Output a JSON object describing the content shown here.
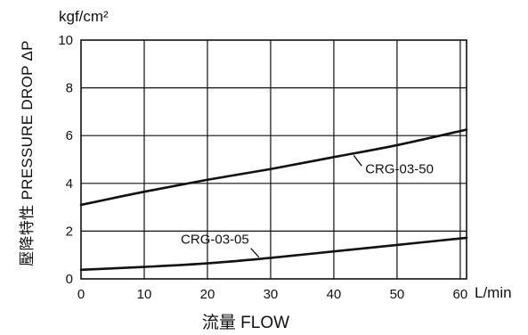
{
  "chart_data": {
    "type": "line",
    "title": "",
    "xlabel": "流量 FLOW",
    "ylabel": "壓降特性 PRESSURE DROP ΔP",
    "x_unit": "L/min",
    "y_unit": "kgf/cm²",
    "xlim": [
      0,
      61
    ],
    "ylim": [
      0,
      10
    ],
    "x_ticks": [
      0,
      10,
      20,
      30,
      40,
      50,
      60
    ],
    "y_ticks": [
      0,
      2,
      4,
      6,
      8,
      10
    ],
    "grid": true,
    "legend": "none",
    "series": [
      {
        "name": "CRG-03-50",
        "x": [
          0,
          10,
          20,
          30,
          40,
          50,
          61
        ],
        "y": [
          3.1,
          3.65,
          4.15,
          4.6,
          5.1,
          5.6,
          6.25
        ]
      },
      {
        "name": "CRG-03-05",
        "x": [
          0,
          10,
          20,
          30,
          40,
          50,
          61
        ],
        "y": [
          0.38,
          0.5,
          0.65,
          0.88,
          1.15,
          1.42,
          1.72
        ]
      }
    ],
    "colors": {
      "line": "#111111",
      "grid": "#111111",
      "background": "#ffffff"
    }
  }
}
